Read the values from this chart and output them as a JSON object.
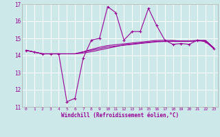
{
  "xlabel": "Windchill (Refroidissement éolien,°C)",
  "bg_color": "#cce8e8",
  "line_color": "#990099",
  "grid_color": "#ffffff",
  "xlim": [
    -0.5,
    23.5
  ],
  "ylim": [
    11,
    17
  ],
  "xticks": [
    0,
    1,
    2,
    3,
    4,
    5,
    6,
    7,
    8,
    9,
    10,
    11,
    12,
    13,
    14,
    15,
    16,
    17,
    18,
    19,
    20,
    21,
    22,
    23
  ],
  "yticks": [
    11,
    12,
    13,
    14,
    15,
    16,
    17
  ],
  "series": [
    [
      14.3,
      14.2,
      14.1,
      14.1,
      14.1,
      11.3,
      11.5,
      13.85,
      14.9,
      15.0,
      16.85,
      16.5,
      14.9,
      15.4,
      15.4,
      16.75,
      15.75,
      14.9,
      14.65,
      14.7,
      14.65,
      14.9,
      14.8,
      14.4
    ],
    [
      14.3,
      14.2,
      14.1,
      14.1,
      14.1,
      14.1,
      14.1,
      14.2,
      14.3,
      14.4,
      14.5,
      14.55,
      14.6,
      14.65,
      14.7,
      14.75,
      14.8,
      14.82,
      14.84,
      14.85,
      14.85,
      14.88,
      14.88,
      14.45
    ],
    [
      14.3,
      14.2,
      14.1,
      14.1,
      14.1,
      14.1,
      14.1,
      14.22,
      14.35,
      14.48,
      14.58,
      14.63,
      14.68,
      14.73,
      14.78,
      14.83,
      14.88,
      14.88,
      14.88,
      14.83,
      14.83,
      14.87,
      14.87,
      14.45
    ],
    [
      14.3,
      14.2,
      14.1,
      14.1,
      14.1,
      14.1,
      14.1,
      14.14,
      14.22,
      14.32,
      14.42,
      14.52,
      14.62,
      14.67,
      14.72,
      14.77,
      14.82,
      14.82,
      14.82,
      14.82,
      14.82,
      14.85,
      14.85,
      14.42
    ]
  ]
}
